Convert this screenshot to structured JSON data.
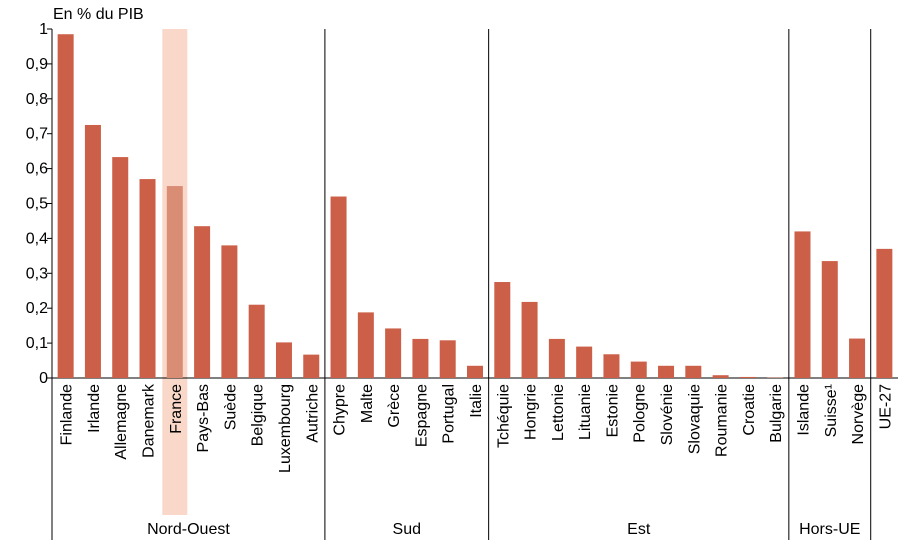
{
  "chart_data": {
    "type": "bar",
    "ylabel": "En % du PIB",
    "ylim": [
      0,
      1
    ],
    "yticks": [
      "0",
      "0,1",
      "0,2",
      "0,3",
      "0,4",
      "0,5",
      "0,6",
      "0,7",
      "0,8",
      "0,9",
      "1"
    ],
    "grid": false,
    "highlight": "France",
    "colors": {
      "bar": "#cc5f47",
      "highlight_band": "#f9d8c9",
      "highlight_bar": "#da8d75"
    },
    "categories": [
      "Finlande",
      "Irlande",
      "Allemagne",
      "Danemark",
      "France",
      "Pays-Bas",
      "Suède",
      "Belgique",
      "Luxembourg",
      "Autriche",
      "Chypre",
      "Malte",
      "Grèce",
      "Espagne",
      "Portugal",
      "Italie",
      "Tchéquie",
      "Hongrie",
      "Lettonie",
      "Lituanie",
      "Estonie",
      "Pologne",
      "Slovénie",
      "Slovaquie",
      "Roumanie",
      "Croatie",
      "Bulgarie",
      "Islande",
      "Suisse¹",
      "Norvège",
      "UE-27"
    ],
    "values": [
      0.985,
      0.725,
      0.633,
      0.57,
      0.55,
      0.435,
      0.38,
      0.21,
      0.102,
      0.067,
      0.52,
      0.188,
      0.142,
      0.112,
      0.108,
      0.035,
      0.275,
      0.218,
      0.112,
      0.09,
      0.068,
      0.047,
      0.035,
      0.035,
      0.008,
      0.003,
      0.001,
      0.42,
      0.335,
      0.113,
      0.37
    ],
    "groups": [
      {
        "label": "Nord-Ouest",
        "count": 10
      },
      {
        "label": "Sud",
        "count": 6
      },
      {
        "label": "Est",
        "count": 11
      },
      {
        "label": "Hors-UE",
        "count": 3
      },
      {
        "label": "",
        "count": 1
      }
    ]
  }
}
